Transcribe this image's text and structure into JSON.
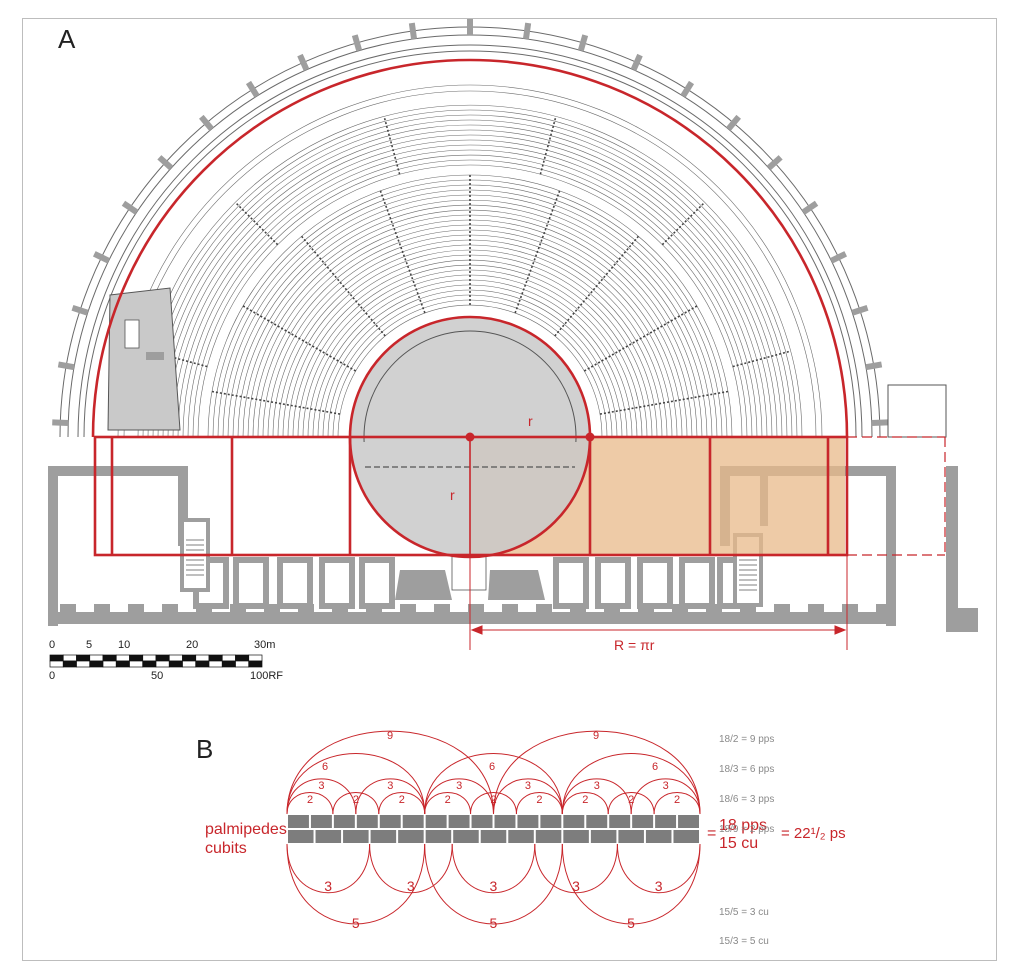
{
  "colors": {
    "accent_red": "#c8262b",
    "stone_grey": "#9e9e9e",
    "orchestra_grey": "#c9c9c9",
    "highlight_orange": "#e8b98a",
    "line": "#555555"
  },
  "panel_a": {
    "label": "A",
    "radius_small_label": "r",
    "radius_vertical_label": "r",
    "big_radius_label": "R = πr",
    "scale_bar": {
      "top_ticks": [
        "0",
        "5",
        "10",
        "20",
        "30m"
      ],
      "bottom_ticks": [
        "0",
        "50",
        "100RF"
      ]
    }
  },
  "panel_b": {
    "label": "B",
    "row1_label": "palmipedes",
    "row2_label": "cubits",
    "eq1": "=",
    "total_pps": "18 pps",
    "total_cu": "15 cu",
    "eq2": "= 22¹/₂ ps",
    "upper_arc_labels": {
      "nine": "9",
      "six": "6",
      "three": "3",
      "two": "2"
    },
    "lower_arc_labels": {
      "three": "3",
      "five": "5"
    },
    "formulas_top": [
      "18/2 = 9 pps",
      "18/3 = 6 pps",
      "18/6 = 3 pps",
      "18/9 = 2 pps"
    ],
    "formulas_bottom": [
      "15/5 = 3 cu",
      "15/3 = 5 cu"
    ]
  }
}
